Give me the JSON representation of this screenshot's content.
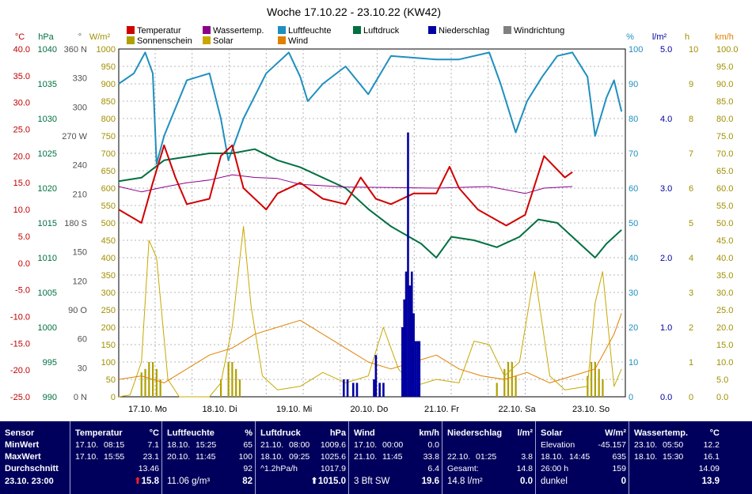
{
  "title": "Woche 17.10.22 - 23.10.22 (KW42)",
  "legend": [
    {
      "label": "Temperatur",
      "color": "#d00000"
    },
    {
      "label": "Wassertemp.",
      "color": "#8b008b"
    },
    {
      "label": "Luftfeuchte",
      "color": "#1f8fbf"
    },
    {
      "label": "Luftdruck",
      "color": "#007040"
    },
    {
      "label": "Niederschlag",
      "color": "#0000a0"
    },
    {
      "label": "Windrichtung",
      "color": "#808080"
    },
    {
      "label": "Sonnenschein",
      "color": "#b0a000"
    },
    {
      "label": "Solar",
      "color": "#c8a800"
    },
    {
      "label": "Wind",
      "color": "#e08000"
    }
  ],
  "axes": {
    "temp_unit": "°C",
    "temp_ticks": [
      "40.0",
      "35.0",
      "30.0",
      "25.0",
      "20.0",
      "15.0",
      "10.0",
      "5.0",
      "0.0",
      "-5.0",
      "-10.0",
      "-15.0",
      "-20.0",
      "-25.0"
    ],
    "hpa_unit": "hPa",
    "hpa_ticks": [
      "1040",
      "1035",
      "1030",
      "1025",
      "1020",
      "1015",
      "1010",
      "1005",
      "1000",
      "995",
      "990"
    ],
    "dir_unit": "°",
    "dir_ticks": [
      "360 N",
      "330",
      "300",
      "270 W",
      "240",
      "210",
      "180 S",
      "150",
      "120",
      "90 O",
      "60",
      "30",
      "0 N"
    ],
    "wm2_unit": "W/m²",
    "wm2_ticks": [
      "1000",
      "950",
      "900",
      "850",
      "800",
      "750",
      "700",
      "650",
      "600",
      "550",
      "500",
      "450",
      "400",
      "350",
      "300",
      "250",
      "200",
      "150",
      "100",
      "50",
      "0"
    ],
    "pct_unit": "%",
    "pct_ticks": [
      "100",
      "90",
      "80",
      "70",
      "60",
      "50",
      "40",
      "30",
      "20",
      "10",
      "0"
    ],
    "rain_unit": "l/m²",
    "rain_ticks": [
      "5.0",
      "4.0",
      "3.0",
      "2.0",
      "1.0",
      "0.0"
    ],
    "h_unit": "h",
    "h_ticks": [
      "10",
      "9",
      "8",
      "7",
      "6",
      "5",
      "4",
      "3",
      "2",
      "1",
      "0"
    ],
    "kmh_unit": "km/h",
    "kmh_ticks": [
      "100.0",
      "95.0",
      "90.0",
      "85.0",
      "80.0",
      "75.0",
      "70.0",
      "65.0",
      "60.0",
      "55.0",
      "50.0",
      "45.0",
      "40.0",
      "35.0",
      "30.0",
      "25.0",
      "20.0",
      "15.0",
      "10.0",
      "5.0",
      "0.0"
    ],
    "day_labels": [
      "17.10. Mo",
      "18.10. Di",
      "19.10. Mi",
      "20.10. Do",
      "21.10. Fr",
      "22.10. Sa",
      "23.10. So"
    ]
  },
  "chart_data": {
    "type": "line",
    "x_unit": "hours since 17.10. 00:00",
    "temperature": [
      [
        0,
        10
      ],
      [
        12,
        7.5
      ],
      [
        18,
        15
      ],
      [
        24,
        22
      ],
      [
        30,
        16
      ],
      [
        36,
        11
      ],
      [
        48,
        12
      ],
      [
        54,
        20
      ],
      [
        60,
        22
      ],
      [
        66,
        14
      ],
      [
        78,
        10
      ],
      [
        84,
        13
      ],
      [
        96,
        15
      ],
      [
        108,
        12
      ],
      [
        120,
        11
      ],
      [
        128,
        16
      ],
      [
        136,
        12
      ],
      [
        144,
        11
      ],
      [
        156,
        13
      ],
      [
        168,
        13
      ],
      [
        175,
        18
      ],
      [
        180,
        14
      ],
      [
        190,
        10
      ],
      [
        205,
        7
      ],
      [
        215,
        9
      ],
      [
        225,
        20
      ],
      [
        236,
        16
      ],
      [
        240,
        17
      ]
    ],
    "water_temp": [
      [
        0,
        14.3
      ],
      [
        12,
        13.3
      ],
      [
        24,
        14.2
      ],
      [
        36,
        15
      ],
      [
        48,
        15.5
      ],
      [
        60,
        16.5
      ],
      [
        72,
        16
      ],
      [
        84,
        15.8
      ],
      [
        96,
        14.7
      ],
      [
        120,
        14.2
      ],
      [
        144,
        14.1
      ],
      [
        168,
        14
      ],
      [
        196,
        14.3
      ],
      [
        215,
        13
      ],
      [
        225,
        14
      ],
      [
        240,
        14.3
      ]
    ],
    "humidity": [
      [
        0,
        90
      ],
      [
        8,
        93
      ],
      [
        14,
        99
      ],
      [
        18,
        93
      ],
      [
        20,
        67
      ],
      [
        24,
        75
      ],
      [
        36,
        91
      ],
      [
        48,
        93
      ],
      [
        54,
        80
      ],
      [
        58,
        68
      ],
      [
        66,
        80
      ],
      [
        78,
        93
      ],
      [
        90,
        99
      ],
      [
        96,
        92
      ],
      [
        100,
        85
      ],
      [
        108,
        90
      ],
      [
        120,
        95
      ],
      [
        132,
        87
      ],
      [
        144,
        98
      ],
      [
        168,
        97
      ],
      [
        180,
        97
      ],
      [
        196,
        99
      ],
      [
        202,
        90
      ],
      [
        210,
        76
      ],
      [
        216,
        85
      ],
      [
        224,
        92
      ],
      [
        232,
        98
      ],
      [
        240,
        99
      ],
      [
        248,
        92
      ],
      [
        252,
        75
      ],
      [
        258,
        86
      ],
      [
        262,
        91
      ],
      [
        266,
        82
      ]
    ],
    "pressure": [
      [
        0,
        1021
      ],
      [
        12,
        1021.5
      ],
      [
        24,
        1024
      ],
      [
        36,
        1024.5
      ],
      [
        48,
        1025
      ],
      [
        60,
        1025
      ],
      [
        72,
        1025.6
      ],
      [
        84,
        1024
      ],
      [
        96,
        1023
      ],
      [
        108,
        1021.5
      ],
      [
        120,
        1020
      ],
      [
        132,
        1017
      ],
      [
        144,
        1014.5
      ],
      [
        160,
        1012
      ],
      [
        168,
        1010
      ],
      [
        176,
        1013
      ],
      [
        188,
        1012.5
      ],
      [
        200,
        1011.5
      ],
      [
        212,
        1013
      ],
      [
        222,
        1015.5
      ],
      [
        232,
        1015
      ],
      [
        240,
        1013
      ],
      [
        252,
        1010
      ],
      [
        258,
        1012
      ],
      [
        266,
        1014
      ]
    ],
    "solar": [
      [
        0,
        0
      ],
      [
        6,
        5
      ],
      [
        12,
        100
      ],
      [
        16,
        450
      ],
      [
        20,
        400
      ],
      [
        26,
        50
      ],
      [
        32,
        0
      ],
      [
        48,
        0
      ],
      [
        54,
        40
      ],
      [
        60,
        200
      ],
      [
        66,
        490
      ],
      [
        70,
        260
      ],
      [
        76,
        60
      ],
      [
        84,
        20
      ],
      [
        96,
        30
      ],
      [
        108,
        70
      ],
      [
        120,
        40
      ],
      [
        132,
        60
      ],
      [
        140,
        200
      ],
      [
        148,
        80
      ],
      [
        156,
        30
      ],
      [
        168,
        50
      ],
      [
        180,
        40
      ],
      [
        188,
        160
      ],
      [
        196,
        150
      ],
      [
        204,
        60
      ],
      [
        212,
        100
      ],
      [
        220,
        360
      ],
      [
        228,
        60
      ],
      [
        236,
        20
      ],
      [
        248,
        30
      ],
      [
        252,
        270
      ],
      [
        256,
        360
      ],
      [
        262,
        30
      ],
      [
        266,
        80
      ]
    ],
    "wind": [
      [
        0,
        5
      ],
      [
        12,
        6
      ],
      [
        24,
        4
      ],
      [
        36,
        8
      ],
      [
        48,
        12
      ],
      [
        60,
        14
      ],
      [
        72,
        18
      ],
      [
        84,
        20
      ],
      [
        96,
        22
      ],
      [
        108,
        18
      ],
      [
        120,
        14
      ],
      [
        132,
        10
      ],
      [
        144,
        8
      ],
      [
        156,
        10
      ],
      [
        168,
        12
      ],
      [
        180,
        8
      ],
      [
        192,
        6
      ],
      [
        204,
        5
      ],
      [
        216,
        7
      ],
      [
        228,
        4
      ],
      [
        240,
        6
      ],
      [
        252,
        8
      ],
      [
        262,
        18
      ],
      [
        266,
        24
      ]
    ],
    "sunshine_bars_hours": [
      [
        12,
        0.7
      ],
      [
        14,
        0.8
      ],
      [
        16,
        1
      ],
      [
        18,
        1
      ],
      [
        20,
        0.8
      ],
      [
        22,
        0.5
      ],
      [
        54,
        0.5
      ],
      [
        58,
        1
      ],
      [
        60,
        1
      ],
      [
        62,
        0.8
      ],
      [
        64,
        0.5
      ],
      [
        200,
        0.4
      ],
      [
        204,
        0.8
      ],
      [
        206,
        1
      ],
      [
        208,
        1
      ],
      [
        210,
        0.6
      ],
      [
        248,
        0.6
      ],
      [
        250,
        1
      ],
      [
        252,
        1
      ],
      [
        254,
        0.8
      ],
      [
        256,
        0.5
      ]
    ],
    "rain_bars": [
      [
        119,
        0.25
      ],
      [
        121,
        0.25
      ],
      [
        124,
        0.2
      ],
      [
        126,
        0.2
      ],
      [
        135,
        0.25
      ],
      [
        136,
        0.6
      ],
      [
        138,
        0.2
      ],
      [
        140,
        0.2
      ],
      [
        150,
        1.0
      ],
      [
        151,
        1.4
      ],
      [
        152,
        1.8
      ],
      [
        153,
        3.8
      ],
      [
        154,
        1.6
      ],
      [
        155,
        1.8
      ],
      [
        156,
        1.2
      ],
      [
        157,
        0.8
      ],
      [
        158,
        0.8
      ],
      [
        159,
        0.8
      ]
    ]
  },
  "table": {
    "sensor": {
      "h": "Sensor",
      "r1": "MinWert",
      "r2": "MaxWert",
      "r3": "Durchschnitt",
      "r4": "23.10. 23:00"
    },
    "temp": {
      "h": "Temperatur",
      "u": "°C",
      "r1a": "17.10.",
      "r1b": "08:15",
      "r1v": "7.1",
      "r2a": "17.10.",
      "r2b": "15:55",
      "r2v": "23.1",
      "r3v": "13.46",
      "r4v": "15.8",
      "r4arrow": "⬆"
    },
    "hum": {
      "h": "Luftfeuchte",
      "u": "%",
      "r1a": "18.10.",
      "r1b": "15:25",
      "r1v": "65",
      "r2a": "20.10.",
      "r2b": "11:45",
      "r2v": "100",
      "r3v": "92",
      "r4a": "11.06 g/m³",
      "r4v": "82"
    },
    "press": {
      "h": "Luftdruck",
      "u": "hPa",
      "r1a": "21.10.",
      "r1b": "08:00",
      "r1v": "1009.6",
      "r2a": "18.10.",
      "r2b": "09:25",
      "r2v": "1025.6",
      "r3a": "^1.2hPa/h",
      "r3v": "1017.9",
      "r4v": "1015.0",
      "r4arrow": "⬆"
    },
    "wind": {
      "h": "Wind",
      "u": "km/h",
      "r1a": "17.10.",
      "r1b": "00:00",
      "r1v": "0.0",
      "r2a": "21.10.",
      "r2b": "11:45",
      "r2v": "33.8",
      "r3v": "6.4",
      "r4a": "3 Bft SW",
      "r4v": "19.6"
    },
    "rain": {
      "h": "Niederschlag",
      "u": "l/m²",
      "r2a": "22.10.",
      "r2b": "01:25",
      "r2v": "3.8",
      "r3a": "Gesamt:",
      "r3v": "14.8",
      "r4a": "14.8 l/m²",
      "r4v": "0.0"
    },
    "solar": {
      "h": "Solar",
      "u": "W/m²",
      "r1a": "Elevation",
      "r1v": "-45.157",
      "r2a": "18.10.",
      "r2b": "14:45",
      "r2v": "635",
      "r3a": "26:00 h",
      "r3v": "159",
      "r4a": "dunkel",
      "r4v": "0"
    },
    "water": {
      "h": "Wassertemp.",
      "u": "°C",
      "r1a": "23.10.",
      "r1b": "05:50",
      "r1v": "12.2",
      "r2a": "18.10.",
      "r2b": "15:30",
      "r2v": "16.1",
      "r3v": "14.09",
      "r4v": "13.9"
    }
  }
}
